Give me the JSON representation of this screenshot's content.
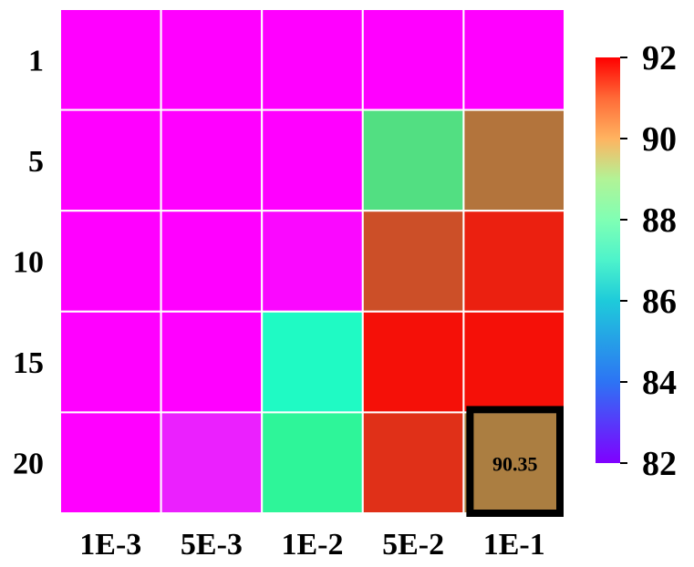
{
  "chart_data": {
    "type": "heatmap",
    "x_categories": [
      "1E-3",
      "5E-3",
      "1E-2",
      "5E-2",
      "1E-1"
    ],
    "y_categories": [
      "1",
      "5",
      "10",
      "15",
      "20"
    ],
    "values": [
      [
        82.0,
        82.0,
        82.0,
        82.0,
        82.0
      ],
      [
        82.0,
        82.0,
        82.0,
        88.6,
        90.5
      ],
      [
        82.0,
        82.0,
        82.1,
        91.0,
        91.6
      ],
      [
        82.0,
        82.0,
        86.4,
        91.8,
        91.8
      ],
      [
        82.0,
        82.4,
        87.9,
        91.4,
        90.35
      ]
    ],
    "highlight": {
      "row": 4,
      "col": 4,
      "label": "90.35"
    },
    "colorbar": {
      "min": 82,
      "max": 92,
      "ticks": [
        "82",
        "84",
        "86",
        "88",
        "90",
        "92"
      ],
      "colormap": "rainbow"
    },
    "grid": true
  }
}
